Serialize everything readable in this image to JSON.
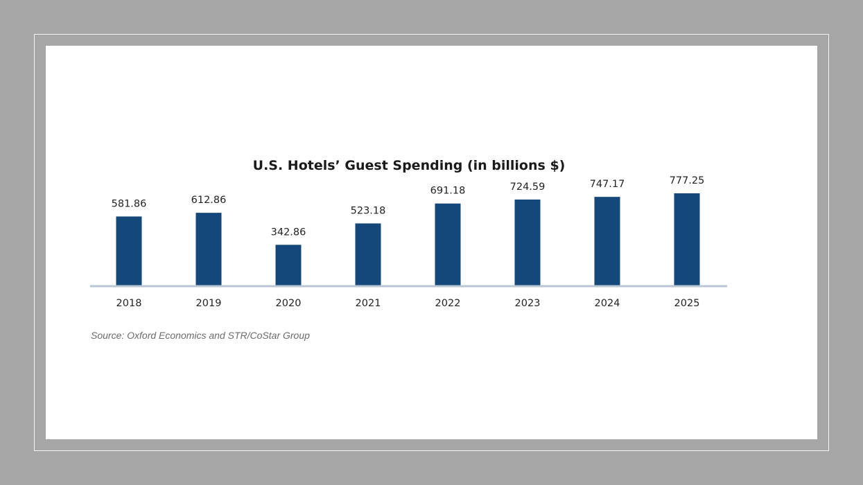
{
  "chart_data": {
    "type": "bar",
    "title": "U.S. Hotels’ Guest Spending (in billions $)",
    "categories": [
      "2018",
      "2019",
      "2020",
      "2021",
      "2022",
      "2023",
      "2024",
      "2025"
    ],
    "values": [
      581.86,
      612.86,
      342.86,
      523.18,
      691.18,
      724.59,
      747.17,
      777.25
    ],
    "data_labels": [
      "581.86",
      "612.86",
      "342.86",
      "523.18",
      "691.18",
      "724.59",
      "747.17",
      "777.25"
    ],
    "xlabel": "",
    "ylabel": "",
    "ylim": [
      0,
      900
    ],
    "grid": false,
    "legend": "none",
    "source": "Source: Oxford Economics and STR/CoStar Group",
    "colors": {
      "bar": "#14477a",
      "axis": "#b9c6d3",
      "background": "#ffffff",
      "outer": "#a6a6a6"
    }
  }
}
